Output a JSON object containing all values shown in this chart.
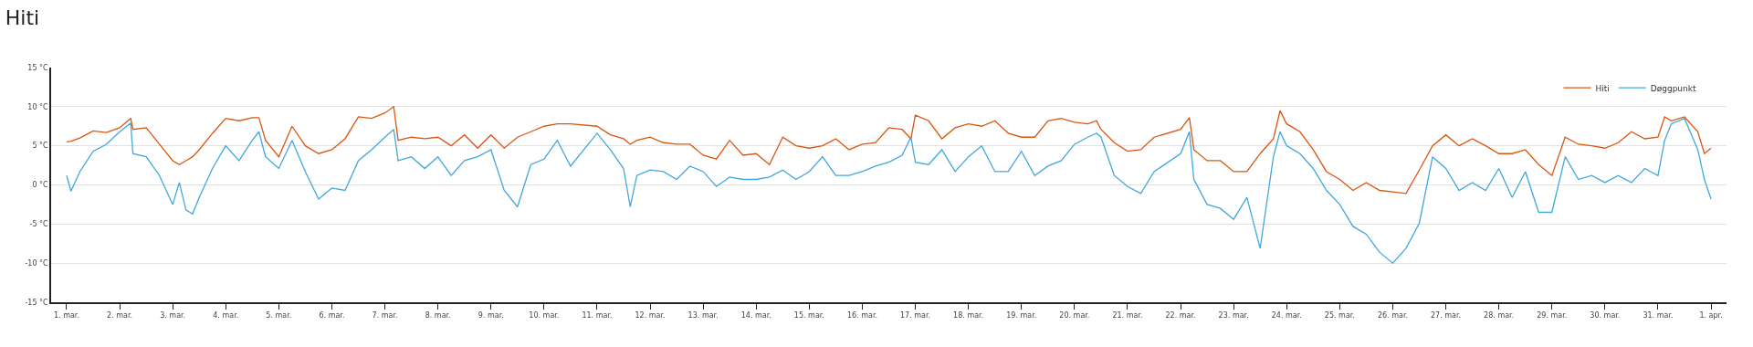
{
  "chart_data": {
    "type": "line",
    "title": "Hiti",
    "x": [
      "--03-01T00:00",
      "--03-01T02:00",
      "--03-01T06:00",
      "--03-01T12:00",
      "--03-01T18:00",
      "--03-02T00:00",
      "--03-02T05:00",
      "--03-02T06:00",
      "--03-02T12:00",
      "--03-02T18:00",
      "--03-03T00:00",
      "--03-03T03:00",
      "--03-03T06:00",
      "--03-03T09:00",
      "--03-03T12:00",
      "--03-03T18:00",
      "--03-04T00:00",
      "--03-04T06:00",
      "--03-04T12:00",
      "--03-04T15:00",
      "--03-04T18:00",
      "--03-05T00:00",
      "--03-05T06:00",
      "--03-05T12:00",
      "--03-05T18:00",
      "--03-06T00:00",
      "--03-06T06:00",
      "--03-06T12:00",
      "--03-06T18:00",
      "--03-07T00:00",
      "--03-07T04:00",
      "--03-07T06:00",
      "--03-07T12:00",
      "--03-07T18:00",
      "--03-08T00:00",
      "--03-08T06:00",
      "--03-08T12:00",
      "--03-08T18:00",
      "--03-09T00:00",
      "--03-09T06:00",
      "--03-09T12:00",
      "--03-09T18:00",
      "--03-10T00:00",
      "--03-10T06:00",
      "--03-10T12:00",
      "--03-11T00:00",
      "--03-11T06:00",
      "--03-11T12:00",
      "--03-11T15:00",
      "--03-11T18:00",
      "--03-12T00:00",
      "--03-12T06:00",
      "--03-12T12:00",
      "--03-12T18:00",
      "--03-13T00:00",
      "--03-13T06:00",
      "--03-13T12:00",
      "--03-13T18:00",
      "--03-14T00:00",
      "--03-14T06:00",
      "--03-14T12:00",
      "--03-14T18:00",
      "--03-15T00:00",
      "--03-15T06:00",
      "--03-15T12:00",
      "--03-15T18:00",
      "--03-16T00:00",
      "--03-16T06:00",
      "--03-16T12:00",
      "--03-16T18:00",
      "--03-16T22:00",
      "--03-17T00:00",
      "--03-17T06:00",
      "--03-17T12:00",
      "--03-17T18:00",
      "--03-18T00:00",
      "--03-18T06:00",
      "--03-18T12:00",
      "--03-18T18:00",
      "--03-19T00:00",
      "--03-19T06:00",
      "--03-19T12:00",
      "--03-19T18:00",
      "--03-20T00:00",
      "--03-20T06:00",
      "--03-20T10:00",
      "--03-20T12:00",
      "--03-20T18:00",
      "--03-21T00:00",
      "--03-21T06:00",
      "--03-21T12:00",
      "--03-22T00:00",
      "--03-22T04:00",
      "--03-22T06:00",
      "--03-22T12:00",
      "--03-22T18:00",
      "--03-23T00:00",
      "--03-23T06:00",
      "--03-23T12:00",
      "--03-23T18:00",
      "--03-23T21:00",
      "--03-24T00:00",
      "--03-24T06:00",
      "--03-24T12:00",
      "--03-24T18:00",
      "--03-25T00:00",
      "--03-25T06:00",
      "--03-25T12:00",
      "--03-25T18:00",
      "--03-26T00:00",
      "--03-26T06:00",
      "--03-26T12:00",
      "--03-26T18:00",
      "--03-27T00:00",
      "--03-27T06:00",
      "--03-27T12:00",
      "--03-27T18:00",
      "--03-28T00:00",
      "--03-28T06:00",
      "--03-28T12:00",
      "--03-28T18:00",
      "--03-29T00:00",
      "--03-29T06:00",
      "--03-29T12:00",
      "--03-29T18:00",
      "--03-30T00:00",
      "--03-30T06:00",
      "--03-30T12:00",
      "--03-30T18:00",
      "--03-31T00:00",
      "--03-31T03:00",
      "--03-31T06:00",
      "--03-31T12:00",
      "--03-31T18:00",
      "--03-31T21:00",
      "--04-01T00:00"
    ],
    "series": [
      {
        "name": "Hiti",
        "color": "#d9560f",
        "values": [
          5.5,
          5.6,
          6.0,
          6.9,
          6.7,
          7.3,
          8.5,
          7.1,
          7.3,
          5.2,
          3.1,
          2.6,
          3.1,
          3.6,
          4.5,
          6.6,
          8.5,
          8.2,
          8.6,
          8.6,
          5.7,
          3.6,
          7.5,
          5.0,
          4.0,
          4.5,
          5.9,
          8.7,
          8.5,
          9.2,
          10.0,
          5.7,
          6.1,
          5.9,
          6.1,
          5.0,
          6.4,
          4.7,
          6.4,
          4.7,
          6.1,
          6.8,
          7.5,
          7.8,
          7.8,
          7.5,
          6.4,
          5.9,
          5.2,
          5.7,
          6.1,
          5.4,
          5.2,
          5.2,
          3.8,
          3.3,
          5.7,
          3.8,
          4.0,
          2.6,
          6.1,
          5.0,
          4.7,
          5.0,
          5.9,
          4.5,
          5.2,
          5.4,
          7.3,
          7.1,
          5.9,
          8.9,
          8.2,
          5.9,
          7.3,
          7.8,
          7.5,
          8.2,
          6.6,
          6.1,
          6.1,
          8.2,
          8.5,
          8.0,
          7.8,
          8.2,
          7.1,
          5.4,
          4.3,
          4.5,
          6.1,
          7.1,
          8.6,
          4.5,
          3.1,
          3.1,
          1.7,
          1.7,
          4.0,
          5.9,
          9.5,
          7.8,
          6.8,
          4.5,
          1.7,
          0.7,
          -0.7,
          0.3,
          -0.7,
          -0.9,
          -1.1,
          1.9,
          5.0,
          6.4,
          5.0,
          5.9,
          5.0,
          4.0,
          4.0,
          4.5,
          2.6,
          1.2,
          6.1,
          5.2,
          5.0,
          4.7,
          5.4,
          6.8,
          5.9,
          6.1,
          8.7,
          8.2,
          8.7,
          6.8,
          4.0,
          4.7
        ]
      },
      {
        "name": "Døggpunkt",
        "color": "#41a7dd",
        "values": [
          1.2,
          -0.8,
          1.7,
          4.3,
          5.2,
          6.8,
          7.9,
          4.0,
          3.6,
          1.2,
          -2.5,
          0.3,
          -3.2,
          -3.7,
          -1.6,
          2.1,
          5.0,
          3.1,
          5.7,
          6.8,
          3.6,
          2.1,
          5.7,
          1.7,
          -1.8,
          -0.4,
          -0.7,
          3.1,
          4.5,
          6.1,
          7.1,
          3.1,
          3.6,
          2.1,
          3.6,
          1.2,
          3.1,
          3.6,
          4.5,
          -0.7,
          -2.8,
          2.6,
          3.3,
          5.7,
          2.4,
          6.6,
          4.5,
          2.1,
          -2.8,
          1.2,
          1.9,
          1.7,
          0.7,
          2.4,
          1.7,
          -0.2,
          1.0,
          0.7,
          0.7,
          1.0,
          1.9,
          0.7,
          1.7,
          3.6,
          1.2,
          1.2,
          1.7,
          2.4,
          2.9,
          3.8,
          6.1,
          2.9,
          2.6,
          4.5,
          1.7,
          3.6,
          5.0,
          1.7,
          1.7,
          4.3,
          1.2,
          2.4,
          3.1,
          5.2,
          6.1,
          6.6,
          6.1,
          1.2,
          -0.2,
          -1.1,
          1.7,
          4.0,
          6.8,
          0.7,
          -2.5,
          -3.0,
          -4.4,
          -1.6,
          -8.1,
          3.6,
          6.8,
          5.0,
          4.0,
          2.1,
          -0.7,
          -2.5,
          -5.3,
          -6.3,
          -8.6,
          -10.0,
          -8.1,
          -4.9,
          3.6,
          2.1,
          -0.7,
          0.3,
          -0.7,
          2.1,
          -1.6,
          1.7,
          -3.5,
          -3.5,
          3.6,
          0.7,
          1.2,
          0.3,
          1.2,
          0.3,
          2.1,
          1.2,
          5.7,
          7.8,
          8.5,
          4.5,
          0.7,
          -1.8
        ]
      }
    ],
    "xlim": [
      "--02-28T17:00",
      "--04-01T07:00"
    ],
    "xticks": [
      {
        "value": "--03-01",
        "label": "1. mar."
      },
      {
        "value": "--03-02",
        "label": "2. mar."
      },
      {
        "value": "--03-03",
        "label": "3. mar."
      },
      {
        "value": "--03-04",
        "label": "4. mar."
      },
      {
        "value": "--03-05",
        "label": "5. mar."
      },
      {
        "value": "--03-06",
        "label": "6. mar."
      },
      {
        "value": "--03-07",
        "label": "7. mar."
      },
      {
        "value": "--03-08",
        "label": "8. mar."
      },
      {
        "value": "--03-09",
        "label": "9. mar."
      },
      {
        "value": "--03-10",
        "label": "10. mar."
      },
      {
        "value": "--03-11",
        "label": "11. mar."
      },
      {
        "value": "--03-12",
        "label": "12. mar."
      },
      {
        "value": "--03-13",
        "label": "13. mar."
      },
      {
        "value": "--03-14",
        "label": "14. mar."
      },
      {
        "value": "--03-15",
        "label": "15. mar."
      },
      {
        "value": "--03-16",
        "label": "16. mar."
      },
      {
        "value": "--03-17",
        "label": "17. mar."
      },
      {
        "value": "--03-18",
        "label": "18. mar."
      },
      {
        "value": "--03-19",
        "label": "19. mar."
      },
      {
        "value": "--03-20",
        "label": "20. mar."
      },
      {
        "value": "--03-21",
        "label": "21. mar."
      },
      {
        "value": "--03-22",
        "label": "22. mar."
      },
      {
        "value": "--03-23",
        "label": "23. mar."
      },
      {
        "value": "--03-24",
        "label": "24. mar."
      },
      {
        "value": "--03-25",
        "label": "25. mar."
      },
      {
        "value": "--03-26",
        "label": "26. mar."
      },
      {
        "value": "--03-27",
        "label": "27. mar."
      },
      {
        "value": "--03-28",
        "label": "28. mar."
      },
      {
        "value": "--03-29",
        "label": "29. mar."
      },
      {
        "value": "--03-30",
        "label": "30. mar."
      },
      {
        "value": "--03-31",
        "label": "31. mar."
      },
      {
        "value": "--04-01",
        "label": "1. apr."
      }
    ],
    "ylim": [
      -15,
      15
    ],
    "yticks": [
      {
        "value": -15,
        "label": "-15 °C"
      },
      {
        "value": -10,
        "label": "-10 °C"
      },
      {
        "value": -5,
        "label": "-5 °C"
      },
      {
        "value": 0,
        "label": "0 °C"
      },
      {
        "value": 5,
        "label": "5 °C"
      },
      {
        "value": 10,
        "label": "10 °C"
      },
      {
        "value": 15,
        "label": "15 °C"
      }
    ],
    "grid": "y",
    "legend": "top right",
    "marker": "none",
    "line_style": "solid"
  }
}
